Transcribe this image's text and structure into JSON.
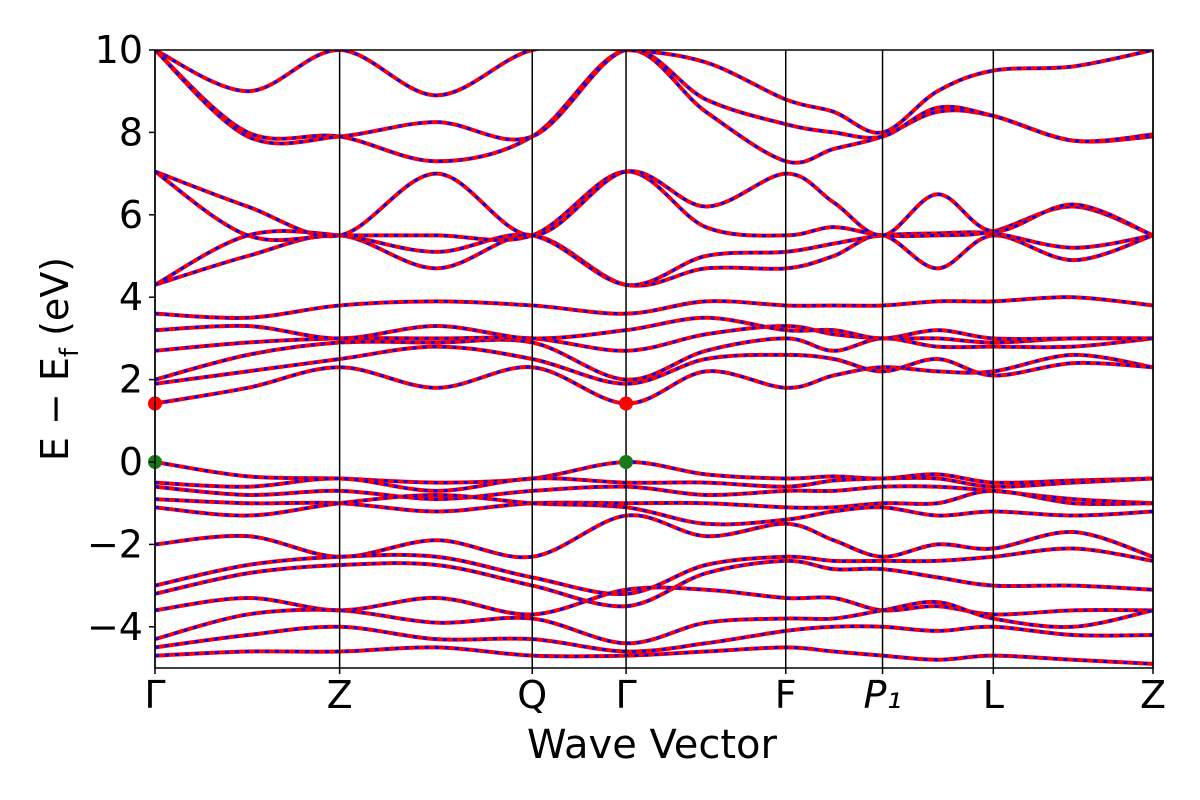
{
  "chart_data": {
    "type": "band-structure",
    "xlabel": "Wave Vector",
    "ylabel": [
      "E − E",
      "f",
      " (eV)"
    ],
    "xlim": [
      0,
      1
    ],
    "ylim": [
      -5,
      10
    ],
    "yticks": [
      {
        "value": -4,
        "label": "−4"
      },
      {
        "value": -2,
        "label": "−2"
      },
      0,
      2,
      4,
      6,
      8,
      10
    ],
    "xticks": [
      {
        "value": 0,
        "label": "Γ"
      },
      {
        "value": 0.185,
        "label": "Z"
      },
      {
        "value": 0.378,
        "label": "Q"
      },
      {
        "value": 0.472,
        "label": "Γ"
      },
      {
        "value": 0.632,
        "label": "F"
      },
      {
        "value": 0.729,
        "label": "P₁"
      },
      {
        "value": 0.84,
        "label": "L"
      },
      {
        "value": 1,
        "label": "Z"
      }
    ],
    "x": [
      0,
      0.093,
      0.185,
      0.282,
      0.378,
      0.472,
      0.552,
      0.632,
      0.68,
      0.729,
      0.784,
      0.84,
      0.92,
      1.0
    ],
    "up_color": "#ff0000",
    "down_color": "#0000ff",
    "bands": [
      [
        1.42,
        1.8,
        2.3,
        1.8,
        2.3,
        1.42,
        2.2,
        1.8,
        2.1,
        2.3,
        2.2,
        2.2,
        2.6,
        2.3
      ],
      [
        1.9,
        2.2,
        2.5,
        2.8,
        2.5,
        1.9,
        2.5,
        2.6,
        2.5,
        2.2,
        2.5,
        2.1,
        2.4,
        2.3
      ],
      [
        2.0,
        2.6,
        2.9,
        2.9,
        2.9,
        2.0,
        2.7,
        3.0,
        2.7,
        3.0,
        2.8,
        2.8,
        2.8,
        3.0
      ],
      [
        2.7,
        2.9,
        3.0,
        3.0,
        3.0,
        2.7,
        3.1,
        3.3,
        3.1,
        3.0,
        3.0,
        2.9,
        3.0,
        3.0
      ],
      [
        3.2,
        3.3,
        3.0,
        3.3,
        3.0,
        3.2,
        3.5,
        3.2,
        3.2,
        3.0,
        3.2,
        3.0,
        3.0,
        3.0
      ],
      [
        3.6,
        3.5,
        3.8,
        3.9,
        3.8,
        3.6,
        3.9,
        3.8,
        3.8,
        3.8,
        3.9,
        3.9,
        4.0,
        3.8
      ],
      [
        4.3,
        5.0,
        5.5,
        4.7,
        5.5,
        4.3,
        4.7,
        4.7,
        5.0,
        5.5,
        4.7,
        5.5,
        4.9,
        5.5
      ],
      [
        4.3,
        5.5,
        5.5,
        5.1,
        5.5,
        4.3,
        5.0,
        5.1,
        5.3,
        5.5,
        5.55,
        5.55,
        5.2,
        5.5
      ],
      [
        7.05,
        5.5,
        5.5,
        5.5,
        5.5,
        7.05,
        5.7,
        5.5,
        5.7,
        5.5,
        5.5,
        5.6,
        6.2,
        5.5
      ],
      [
        7.05,
        6.2,
        5.5,
        7.0,
        5.5,
        7.05,
        6.2,
        7.0,
        6.3,
        5.5,
        6.5,
        5.6,
        6.25,
        5.5
      ],
      [
        10.0,
        8.0,
        7.9,
        7.3,
        7.9,
        10.0,
        8.5,
        7.3,
        7.6,
        7.9,
        8.5,
        8.4,
        7.8,
        7.9
      ],
      [
        10.0,
        7.9,
        7.9,
        8.25,
        7.9,
        10.0,
        8.8,
        8.2,
        8.0,
        7.9,
        8.6,
        8.4,
        7.8,
        7.95
      ],
      [
        10.0,
        9.0,
        10.0,
        8.9,
        10.0,
        10.0,
        9.7,
        8.8,
        8.5,
        8.0,
        9.0,
        9.5,
        9.6,
        10.0
      ],
      [
        0,
        -0.35,
        -0.4,
        -0.5,
        -0.4,
        0,
        -0.3,
        -0.4,
        -0.35,
        -0.4,
        -0.3,
        -0.5,
        -0.45,
        -0.4
      ],
      [
        -0.5,
        -0.6,
        -0.4,
        -0.7,
        -0.4,
        -0.5,
        -0.5,
        -0.6,
        -0.45,
        -0.4,
        -0.4,
        -0.6,
        -0.5,
        -0.4
      ],
      [
        -0.6,
        -0.8,
        -0.7,
        -0.9,
        -0.7,
        -0.6,
        -0.8,
        -0.7,
        -0.7,
        -0.6,
        -0.6,
        -0.7,
        -0.9,
        -1.0
      ],
      [
        -0.9,
        -1.0,
        -1.0,
        -1.2,
        -1.0,
        -1.0,
        -1.0,
        -1.1,
        -1.1,
        -1.0,
        -1.0,
        -0.7,
        -1.0,
        -1.0
      ],
      [
        -1.1,
        -1.3,
        -1.0,
        -0.8,
        -1.0,
        -1.1,
        -1.5,
        -1.4,
        -1.2,
        -1.1,
        -1.3,
        -1.2,
        -1.3,
        -1.2
      ],
      [
        -2.0,
        -1.8,
        -2.3,
        -1.9,
        -2.3,
        -1.3,
        -1.8,
        -1.5,
        -1.9,
        -2.3,
        -2.0,
        -2.1,
        -1.7,
        -2.3
      ],
      [
        -3.0,
        -2.5,
        -2.3,
        -2.3,
        -2.8,
        -3.2,
        -2.5,
        -2.3,
        -2.4,
        -2.4,
        -2.4,
        -2.3,
        -2.1,
        -2.4
      ],
      [
        -3.2,
        -2.7,
        -2.5,
        -2.5,
        -3.0,
        -3.5,
        -2.7,
        -2.4,
        -2.6,
        -2.6,
        -2.8,
        -3.0,
        -3.0,
        -3.1
      ],
      [
        -3.6,
        -3.3,
        -3.6,
        -3.3,
        -3.7,
        -3.1,
        -3.1,
        -3.3,
        -3.3,
        -3.6,
        -3.5,
        -3.7,
        -3.6,
        -3.6
      ],
      [
        -4.3,
        -3.7,
        -3.6,
        -3.9,
        -3.8,
        -4.4,
        -3.9,
        -3.8,
        -3.8,
        -3.6,
        -3.4,
        -3.8,
        -4.0,
        -3.6
      ],
      [
        -4.5,
        -4.2,
        -4.0,
        -4.3,
        -4.3,
        -4.6,
        -4.4,
        -4.1,
        -4.0,
        -4.0,
        -4.1,
        -4.0,
        -4.2,
        -4.2
      ],
      [
        -4.7,
        -4.6,
        -4.6,
        -4.5,
        -4.7,
        -4.7,
        -4.6,
        -4.5,
        -4.6,
        -4.7,
        -4.8,
        -4.7,
        -4.8,
        -4.9
      ]
    ],
    "points": [
      {
        "x": 0,
        "y": 1.42,
        "color": "#ff0000"
      },
      {
        "x": 0.472,
        "y": 1.42,
        "color": "#ff0000"
      },
      {
        "x": 0,
        "y": 0,
        "color": "#1a7a1a"
      },
      {
        "x": 0.472,
        "y": 0,
        "color": "#1a7a1a"
      }
    ]
  }
}
